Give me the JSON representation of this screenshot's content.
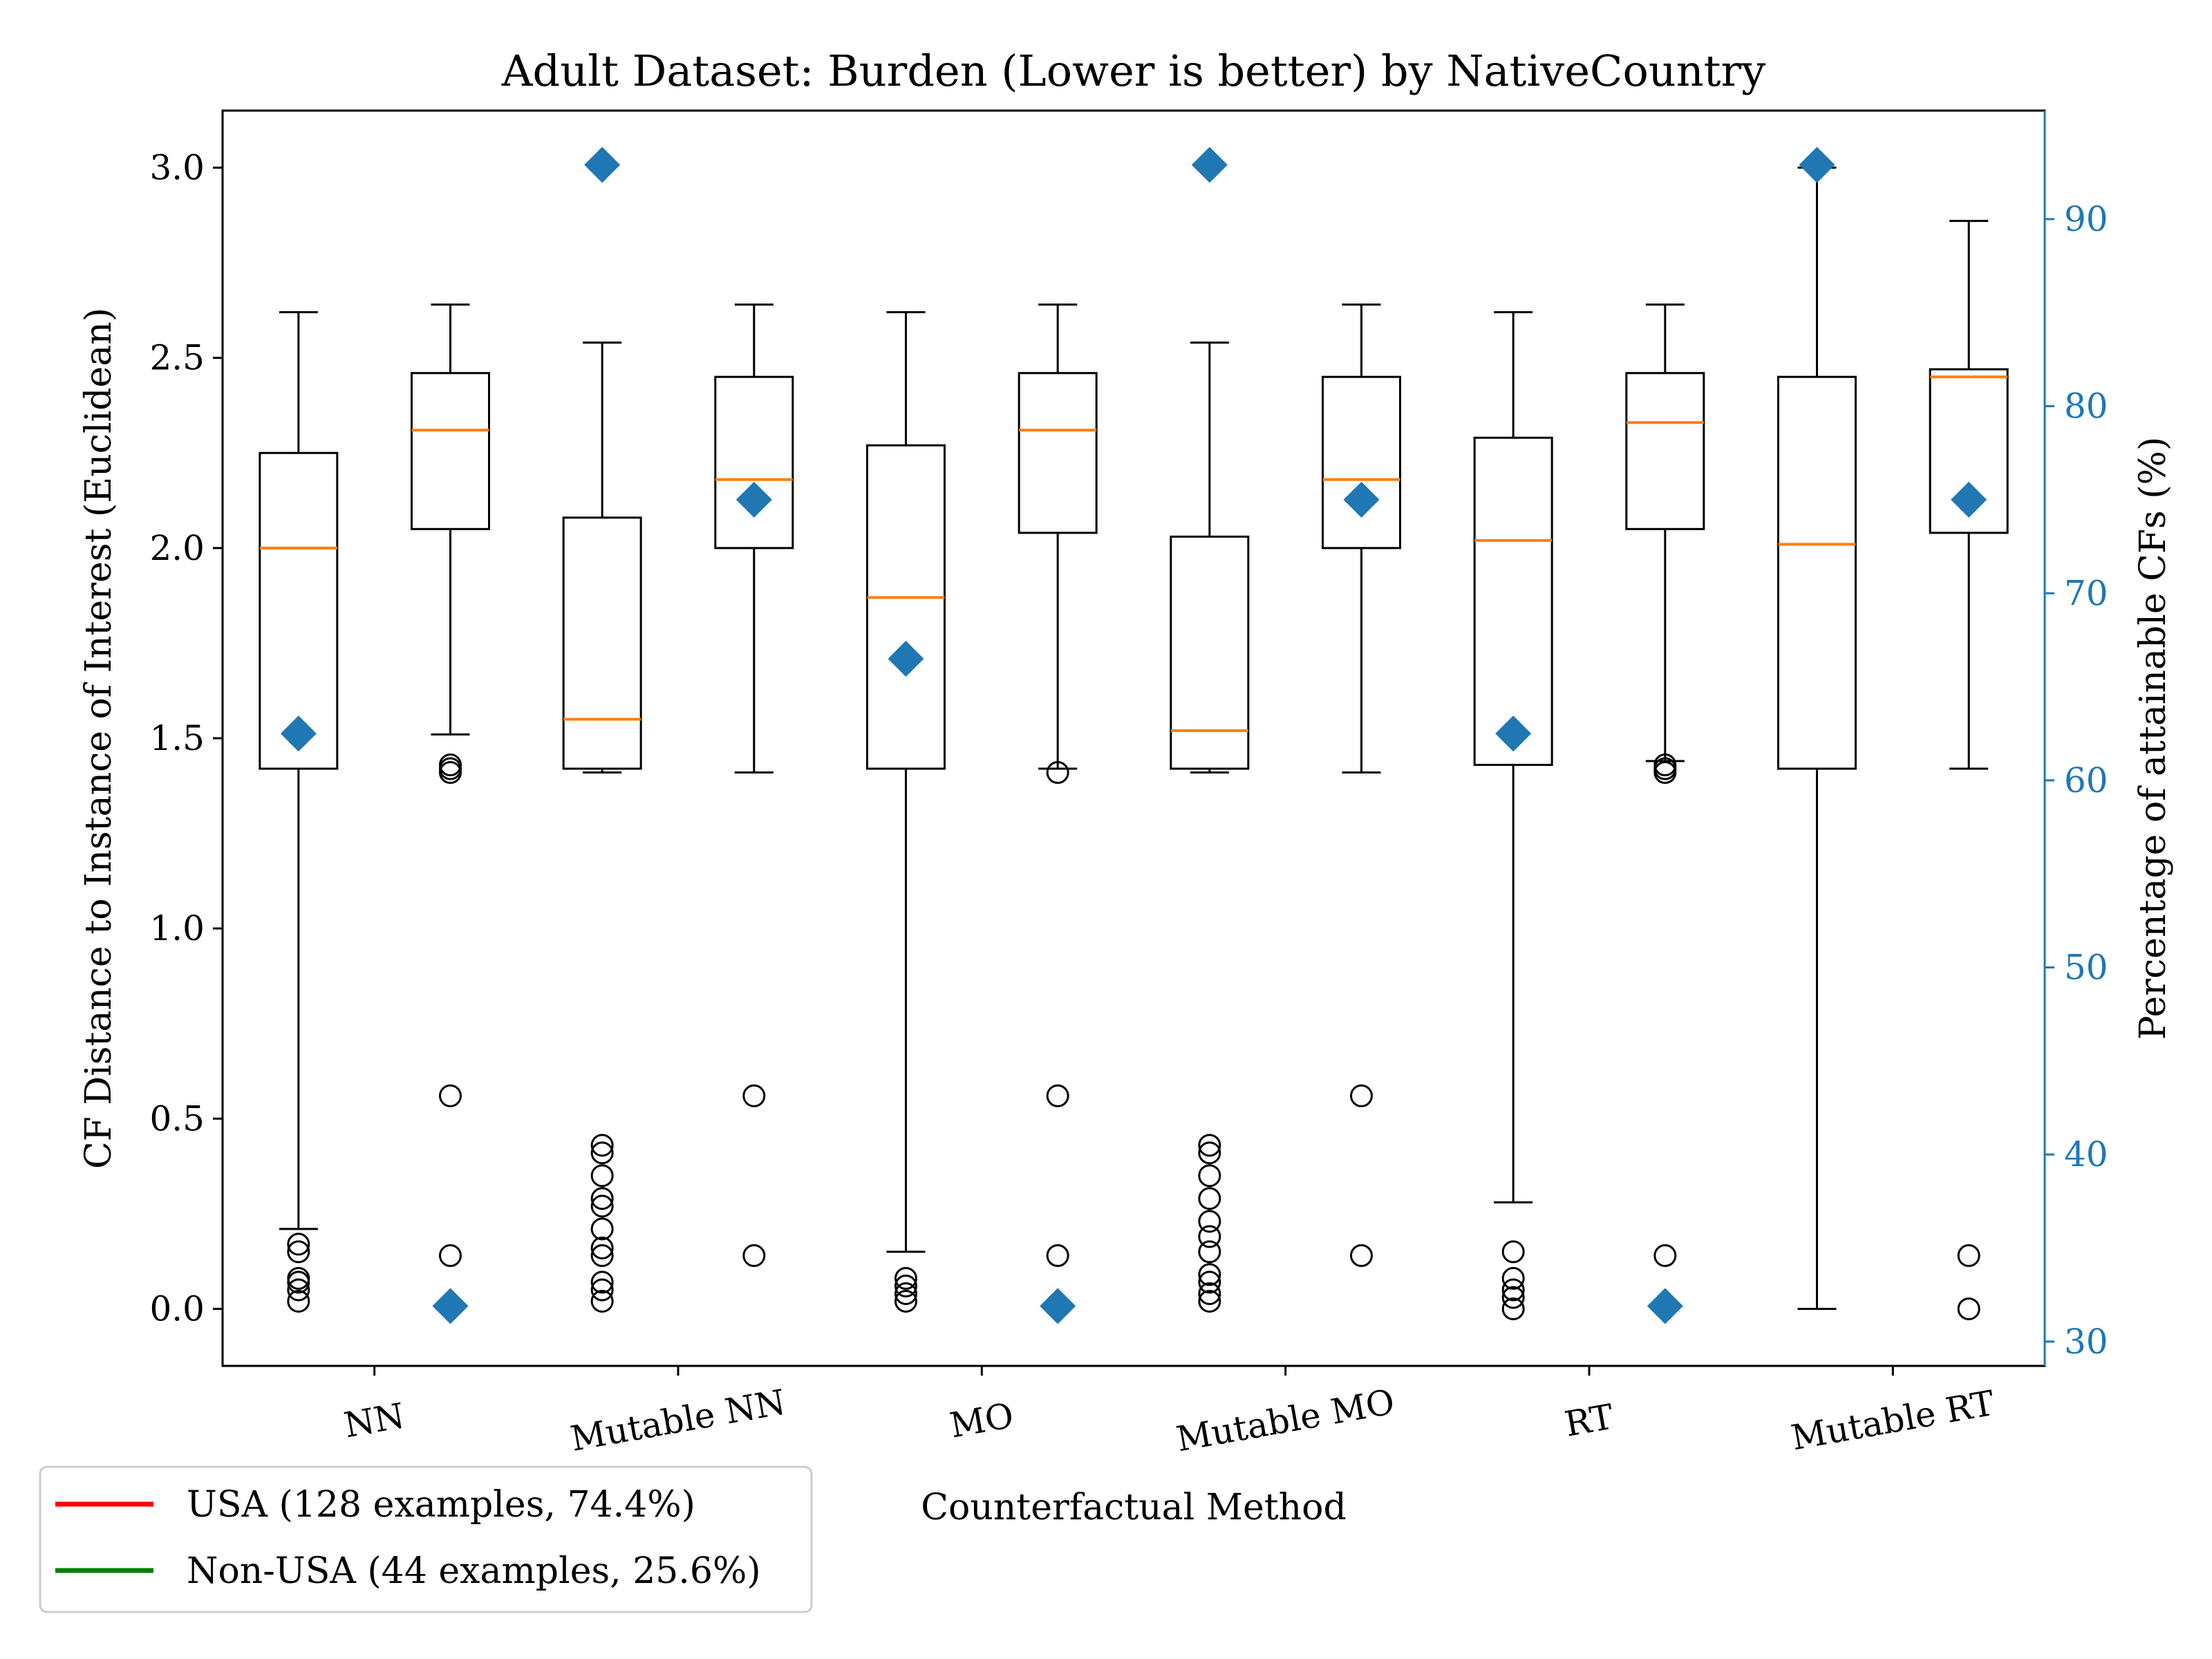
{
  "chart_data": {
    "type": "box",
    "title": "Adult Dataset: Burden (Lower is better) by NativeCountry",
    "xlabel": "Counterfactual Method",
    "ylabel": "CF Distance to Instance of Interest (Euclidean)",
    "ylabel_right": "Percentage of attainable CFs (%)",
    "ylim": [
      -0.15,
      3.15
    ],
    "ylim_right": [
      28.7,
      95.8
    ],
    "yticks": [
      "0.0",
      "0.5",
      "1.0",
      "1.5",
      "2.0",
      "2.5",
      "3.0"
    ],
    "yticks_right": [
      "30",
      "40",
      "50",
      "60",
      "70",
      "80",
      "90"
    ],
    "categories": [
      "NN",
      "Mutable NN",
      "MO",
      "Mutable MO",
      "RT",
      "Mutable RT"
    ],
    "grid": false,
    "legend_position": "below-left",
    "legend": [
      {
        "label": "USA (128 examples, 74.4%)",
        "color": "#ff0000"
      },
      {
        "label": "Non-USA (44 examples, 25.6%)",
        "color": "#008000"
      }
    ],
    "colors": {
      "median": "#ff7f0e",
      "percent_marker": "#1f77b4",
      "box": "#000000"
    },
    "boxes": [
      {
        "method": "NN",
        "group": "USA",
        "whisker_low": 0.21,
        "q1": 1.42,
        "median": 2.0,
        "q3": 2.25,
        "whisker_high": 2.62,
        "outliers": [
          0.02,
          0.05,
          0.07,
          0.08,
          0.15,
          0.17
        ],
        "percent_attainable": 62.5
      },
      {
        "method": "NN",
        "group": "Non-USA",
        "whisker_low": 1.51,
        "q1": 2.05,
        "median": 2.31,
        "q3": 2.46,
        "whisker_high": 2.64,
        "outliers": [
          0.14,
          0.56,
          1.41,
          1.42,
          1.43
        ],
        "percent_attainable": 31.9
      },
      {
        "method": "Mutable NN",
        "group": "USA",
        "whisker_low": 1.41,
        "q1": 1.42,
        "median": 1.55,
        "q3": 2.08,
        "whisker_high": 2.54,
        "outliers": [
          0.02,
          0.05,
          0.07,
          0.14,
          0.16,
          0.21,
          0.27,
          0.29,
          0.35,
          0.41,
          0.43
        ],
        "percent_attainable": 92.9
      },
      {
        "method": "Mutable NN",
        "group": "Non-USA",
        "whisker_low": 1.41,
        "q1": 2.0,
        "median": 2.18,
        "q3": 2.45,
        "whisker_high": 2.64,
        "outliers": [
          0.14,
          0.56
        ],
        "percent_attainable": 75.0
      },
      {
        "method": "MO",
        "group": "USA",
        "whisker_low": 0.15,
        "q1": 1.42,
        "median": 1.87,
        "q3": 2.27,
        "whisker_high": 2.62,
        "outliers": [
          0.02,
          0.04,
          0.06,
          0.08
        ],
        "percent_attainable": 66.5
      },
      {
        "method": "MO",
        "group": "Non-USA",
        "whisker_low": 1.42,
        "q1": 2.04,
        "median": 2.31,
        "q3": 2.46,
        "whisker_high": 2.64,
        "outliers": [
          0.14,
          0.56,
          1.41
        ],
        "percent_attainable": 31.9
      },
      {
        "method": "Mutable MO",
        "group": "USA",
        "whisker_low": 1.41,
        "q1": 1.42,
        "median": 1.52,
        "q3": 2.03,
        "whisker_high": 2.54,
        "outliers": [
          0.02,
          0.04,
          0.07,
          0.09,
          0.15,
          0.19,
          0.23,
          0.29,
          0.35,
          0.41,
          0.43
        ],
        "percent_attainable": 92.9
      },
      {
        "method": "Mutable MO",
        "group": "Non-USA",
        "whisker_low": 1.41,
        "q1": 2.0,
        "median": 2.18,
        "q3": 2.45,
        "whisker_high": 2.64,
        "outliers": [
          0.14,
          0.56
        ],
        "percent_attainable": 75.0
      },
      {
        "method": "RT",
        "group": "USA",
        "whisker_low": 0.28,
        "q1": 1.43,
        "median": 2.02,
        "q3": 2.29,
        "whisker_high": 2.62,
        "outliers": [
          0.0,
          0.03,
          0.05,
          0.08,
          0.15
        ],
        "percent_attainable": 62.5
      },
      {
        "method": "RT",
        "group": "Non-USA",
        "whisker_low": 1.44,
        "q1": 2.05,
        "median": 2.33,
        "q3": 2.46,
        "whisker_high": 2.64,
        "outliers": [
          0.14,
          1.41,
          1.42,
          1.43
        ],
        "percent_attainable": 31.9
      },
      {
        "method": "Mutable RT",
        "group": "USA",
        "whisker_low": 0.0,
        "q1": 1.42,
        "median": 2.01,
        "q3": 2.45,
        "whisker_high": 3.0,
        "outliers": [],
        "percent_attainable": 92.9
      },
      {
        "method": "Mutable RT",
        "group": "Non-USA",
        "whisker_low": 1.42,
        "q1": 2.04,
        "median": 2.45,
        "q3": 2.47,
        "whisker_high": 2.86,
        "outliers": [
          0.0,
          0.14
        ],
        "percent_attainable": 75.0
      }
    ]
  }
}
